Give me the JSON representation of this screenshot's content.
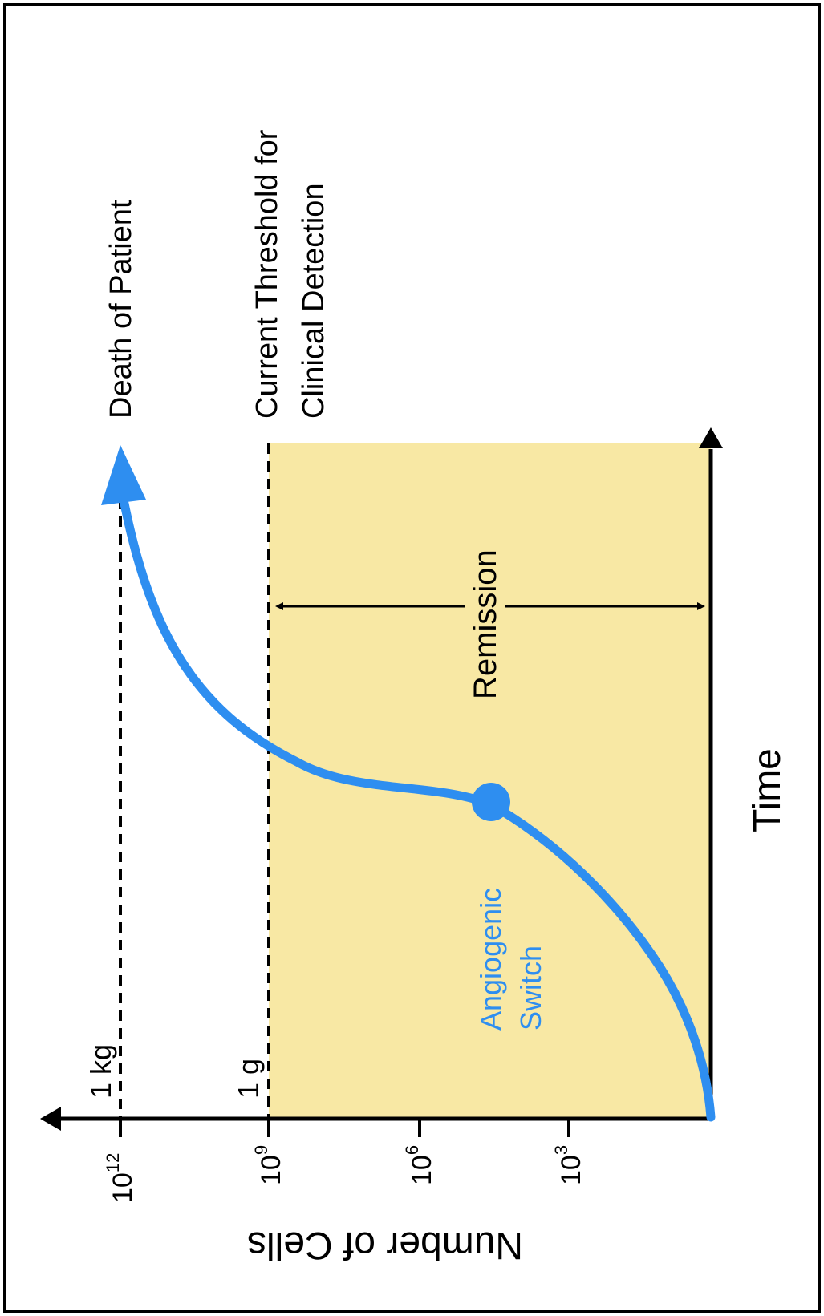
{
  "colors": {
    "curve": "#2e8ef0",
    "remission_fill": "#f8e8a4",
    "axis": "#000000",
    "border": "#000000",
    "background": "#ffffff"
  },
  "y_axis": {
    "label": "Number of Cells",
    "ticks": [
      {
        "base": "10",
        "exp": "12"
      },
      {
        "base": "10",
        "exp": "9"
      },
      {
        "base": "10",
        "exp": "6"
      },
      {
        "base": "10",
        "exp": "3"
      }
    ]
  },
  "x_axis": {
    "label": "Time"
  },
  "threshold_lines": [
    {
      "mass": "1 kg",
      "label_lines": [
        "Death of Patient"
      ]
    },
    {
      "mass": "1 g",
      "label_lines": [
        "Current Threshold for",
        "Clinical Detection"
      ]
    }
  ],
  "region": {
    "label": "Remission"
  },
  "marker": {
    "label_lines": [
      "Angiogenic",
      "Switch"
    ]
  }
}
